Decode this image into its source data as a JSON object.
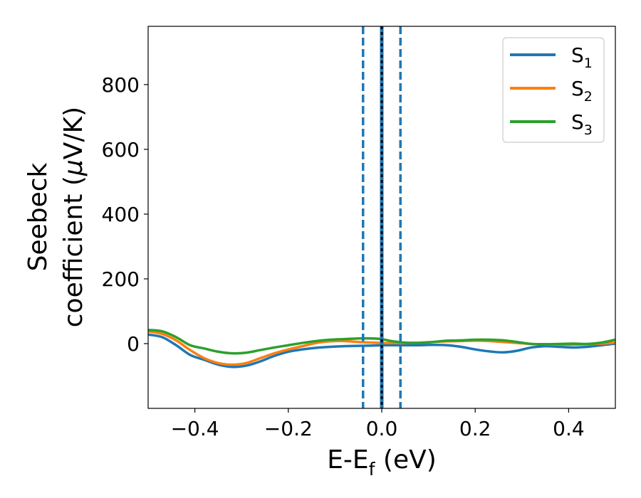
{
  "chart_data": {
    "type": "line",
    "xlabel": {
      "main": "E-E",
      "sub": "f",
      "unit": " (eV)"
    },
    "ylabel": {
      "line1": "Seebeck",
      "line2": "coefficient  (",
      "mu": "μ",
      "unit": "V/K)"
    },
    "xlim": [
      -0.5,
      0.5
    ],
    "ylim": [
      -200,
      980
    ],
    "xticks": [
      -0.4,
      -0.2,
      0.0,
      0.2,
      0.4
    ],
    "xtick_labels": [
      "−0.4",
      "−0.2",
      "0.0",
      "0.2",
      "0.4"
    ],
    "yticks": [
      0,
      200,
      400,
      600,
      800
    ],
    "ytick_labels": [
      "0",
      "200",
      "400",
      "600",
      "800"
    ],
    "grid": false,
    "legend_position": "top-right",
    "vertical_lines": [
      {
        "x": -0.04,
        "style": "dashed",
        "color": "#1f77b4"
      },
      {
        "x": 0.04,
        "style": "dashed",
        "color": "#1f77b4"
      },
      {
        "x": 0.0,
        "style": "solid",
        "color": "#1f77b4"
      },
      {
        "x": 0.0,
        "style": "dotted",
        "color": "#000000"
      }
    ],
    "series": [
      {
        "name": "S",
        "sub": "1",
        "color": "#1f77b4",
        "x": [
          -0.5,
          -0.47,
          -0.44,
          -0.41,
          -0.38,
          -0.35,
          -0.32,
          -0.29,
          -0.26,
          -0.23,
          -0.2,
          -0.17,
          -0.14,
          -0.11,
          -0.08,
          -0.05,
          -0.02,
          0.0,
          0.02,
          0.05,
          0.08,
          0.11,
          0.14,
          0.17,
          0.2,
          0.23,
          0.26,
          0.29,
          0.32,
          0.35,
          0.38,
          0.41,
          0.44,
          0.47,
          0.5
        ],
        "y": [
          28,
          20,
          -5,
          -35,
          -50,
          -65,
          -72,
          -68,
          -55,
          -38,
          -25,
          -18,
          -13,
          -10,
          -8,
          -7,
          -6,
          -5,
          -5,
          -5,
          -5,
          -4,
          -5,
          -10,
          -18,
          -24,
          -27,
          -22,
          -12,
          -8,
          -10,
          -12,
          -10,
          -5,
          0
        ]
      },
      {
        "name": "S",
        "sub": "2",
        "color": "#ff7f0e",
        "x": [
          -0.5,
          -0.47,
          -0.44,
          -0.41,
          -0.38,
          -0.35,
          -0.32,
          -0.29,
          -0.26,
          -0.23,
          -0.2,
          -0.17,
          -0.14,
          -0.11,
          -0.08,
          -0.05,
          -0.02,
          0.0,
          0.02,
          0.05,
          0.08,
          0.11,
          0.14,
          0.17,
          0.2,
          0.23,
          0.26,
          0.29,
          0.32,
          0.35,
          0.38,
          0.41,
          0.44,
          0.47,
          0.5
        ],
        "y": [
          38,
          30,
          10,
          -20,
          -45,
          -60,
          -65,
          -60,
          -45,
          -30,
          -18,
          -8,
          2,
          7,
          8,
          5,
          3,
          2,
          2,
          2,
          3,
          5,
          7,
          8,
          9,
          8,
          5,
          2,
          -1,
          -2,
          -3,
          -3,
          -2,
          0,
          3
        ]
      },
      {
        "name": "S",
        "sub": "3",
        "color": "#2ca02c",
        "x": [
          -0.5,
          -0.47,
          -0.44,
          -0.41,
          -0.38,
          -0.35,
          -0.32,
          -0.29,
          -0.26,
          -0.23,
          -0.2,
          -0.17,
          -0.14,
          -0.11,
          -0.08,
          -0.05,
          -0.02,
          0.0,
          0.02,
          0.05,
          0.08,
          0.11,
          0.14,
          0.17,
          0.2,
          0.23,
          0.26,
          0.29,
          0.32,
          0.35,
          0.38,
          0.41,
          0.44,
          0.47,
          0.5
        ],
        "y": [
          42,
          38,
          20,
          -5,
          -15,
          -25,
          -30,
          -28,
          -20,
          -12,
          -5,
          2,
          8,
          12,
          14,
          16,
          16,
          14,
          8,
          3,
          2,
          5,
          9,
          10,
          12,
          12,
          10,
          5,
          -1,
          -2,
          -1,
          0,
          -1,
          3,
          12
        ]
      }
    ]
  }
}
